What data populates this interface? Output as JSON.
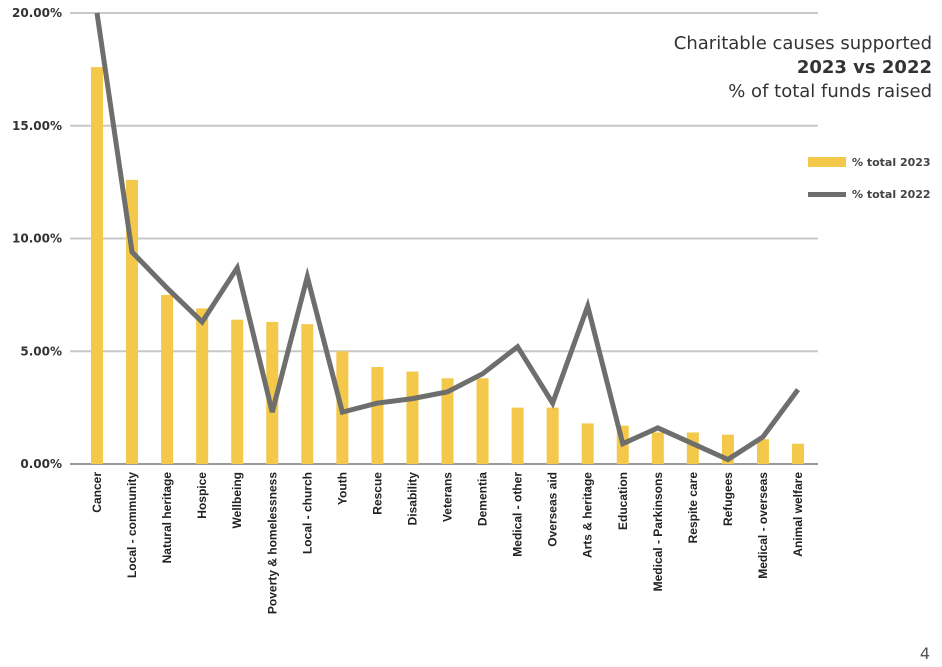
{
  "title": {
    "line1": "Charitable causes supported",
    "line2": "2023 vs 2022",
    "line3": "% of total funds raised"
  },
  "page_number": "4",
  "colors": {
    "bars": "#F4C84A",
    "line": "#6E6E6C",
    "grid": "#c8c8c8",
    "axis": "#9a9a9a"
  },
  "chart_data": {
    "type": "bar",
    "categories": [
      "Cancer",
      "Local - community",
      "Natural heritage",
      "Hospice",
      "Wellbeing",
      "Poverty & homelessness",
      "Local - church",
      "Youth",
      "Rescue",
      "Disability",
      "Veterans",
      "Dementia",
      "Medical - other",
      "Overseas aid",
      "Arts & heritage",
      "Education",
      "Medical - Parkinsons",
      "Respite care",
      "Refugees",
      "Medical - overseas",
      "Animal welfare"
    ],
    "series": [
      {
        "name": "% total 2023",
        "type": "bar",
        "values": [
          17.6,
          12.6,
          7.5,
          6.9,
          6.4,
          6.3,
          6.2,
          5.0,
          4.3,
          4.1,
          3.8,
          3.8,
          2.5,
          2.5,
          1.8,
          1.7,
          1.4,
          1.4,
          1.3,
          1.1,
          0.9
        ]
      },
      {
        "name": "% total 2022",
        "type": "line",
        "values": [
          20.0,
          9.4,
          7.8,
          6.3,
          8.7,
          2.3,
          8.3,
          2.3,
          2.7,
          2.9,
          3.2,
          4.0,
          5.2,
          2.7,
          7.0,
          0.9,
          1.6,
          0.9,
          0.2,
          1.2,
          3.3
        ]
      }
    ],
    "yticks": [
      "0.00%",
      "5.00%",
      "10.00%",
      "15.00%",
      "20.00%"
    ],
    "ytick_values": [
      0,
      5,
      10,
      15,
      20
    ],
    "ylim": [
      0,
      20
    ],
    "grid": true,
    "legend_position": "right"
  }
}
